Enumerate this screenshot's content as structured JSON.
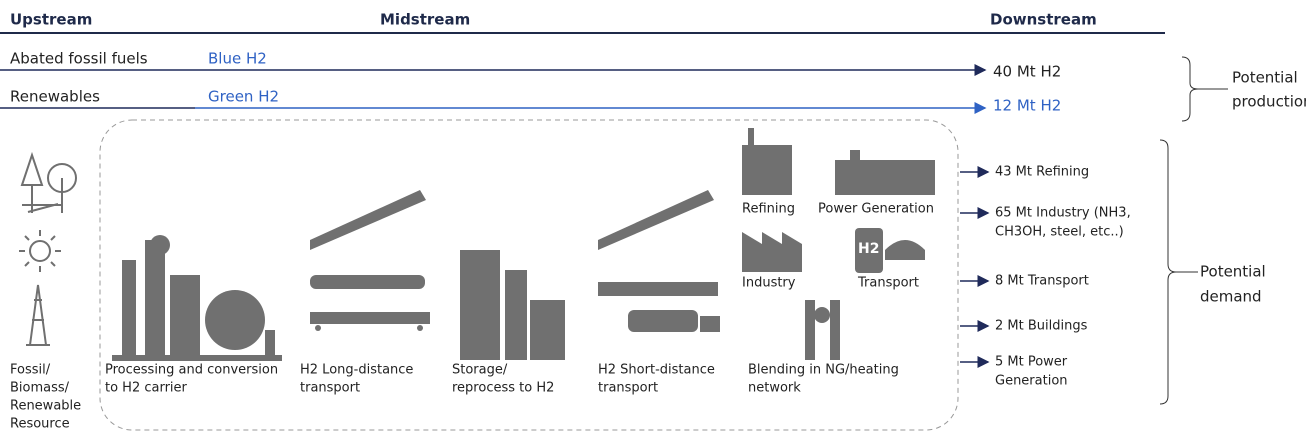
{
  "header": {
    "upstream": "Upstream",
    "midstream": "Midstream",
    "downstream": "Downstream"
  },
  "production": {
    "rows": [
      {
        "source": "Abated fossil fuels",
        "product": "Blue H2",
        "output": "40 Mt H2"
      },
      {
        "source": "Renewables",
        "product": "Green H2",
        "output": "12 Mt H2"
      }
    ],
    "label": [
      "Potential",
      "production"
    ]
  },
  "stages": [
    [
      "Fossil/",
      "Biomass/",
      "Renewable",
      "Resource"
    ],
    [
      "Processing and conversion",
      "to H2 carrier"
    ],
    [
      "H2 Long-distance",
      "transport"
    ],
    [
      "Storage/",
      "reprocess to H2"
    ],
    [
      "H2 Short-distance",
      "transport"
    ],
    [
      "Blending in NG/heating",
      "network"
    ]
  ],
  "uses": {
    "refining": "Refining",
    "power": "Power Generation",
    "industry": "Industry",
    "transport": "Transport",
    "h2_sign": "H2"
  },
  "demand": {
    "items": [
      [
        "43 Mt Refining"
      ],
      [
        "65 Mt Industry (NH3,",
        "CH3OH, steel, etc..)"
      ],
      [
        "8 Mt Transport"
      ],
      [
        "2 Mt Buildings"
      ],
      [
        "5 Mt Power",
        "Generation"
      ]
    ],
    "label": [
      "Potential",
      "demand"
    ]
  }
}
